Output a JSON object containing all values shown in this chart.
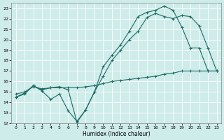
{
  "xlabel": "Humidex (Indice chaleur)",
  "background_color": "#ceecea",
  "grid_color": "#ffffff",
  "line_color": "#1a6b62",
  "xlim": [
    -0.5,
    23.5
  ],
  "ylim": [
    12,
    23.5
  ],
  "xticks": [
    0,
    1,
    2,
    3,
    4,
    5,
    6,
    7,
    8,
    9,
    10,
    11,
    12,
    13,
    14,
    15,
    16,
    17,
    18,
    19,
    20,
    21,
    22,
    23
  ],
  "yticks": [
    12,
    13,
    14,
    15,
    16,
    17,
    18,
    19,
    20,
    21,
    22,
    23
  ],
  "line1_x": [
    0,
    1,
    2,
    3,
    4,
    5,
    6,
    7,
    8,
    9,
    10,
    11,
    12,
    13,
    14,
    15,
    16,
    17,
    18,
    19,
    20,
    21,
    22,
    23
  ],
  "line1_y": [
    14.5,
    14.9,
    15.6,
    15.2,
    15.4,
    15.5,
    15.2,
    12.1,
    13.3,
    15.0,
    17.4,
    18.5,
    19.5,
    20.8,
    22.2,
    22.6,
    22.8,
    23.2,
    22.8,
    21.2,
    19.2,
    19.2,
    17.0,
    17.0
  ],
  "line2_x": [
    0,
    1,
    2,
    3,
    4,
    5,
    6,
    7,
    8,
    9,
    10,
    11,
    12,
    13,
    14,
    15,
    16,
    17,
    18,
    19,
    20,
    21,
    22,
    23
  ],
  "line2_y": [
    14.5,
    14.8,
    15.6,
    15.1,
    14.3,
    14.8,
    13.2,
    12.2,
    13.3,
    15.0,
    16.5,
    18.0,
    19.0,
    20.0,
    20.8,
    22.1,
    22.5,
    22.2,
    22.0,
    22.3,
    22.2,
    21.3,
    19.2,
    17.0
  ],
  "line3_x": [
    0,
    1,
    2,
    3,
    4,
    5,
    6,
    7,
    8,
    9,
    10,
    11,
    12,
    13,
    14,
    15,
    16,
    17,
    18,
    19,
    20,
    21,
    22,
    23
  ],
  "line3_y": [
    14.8,
    15.0,
    15.5,
    15.3,
    15.4,
    15.4,
    15.4,
    15.4,
    15.5,
    15.6,
    15.8,
    16.0,
    16.1,
    16.2,
    16.3,
    16.4,
    16.5,
    16.7,
    16.8,
    17.0,
    17.0,
    17.0,
    17.0,
    17.0
  ]
}
